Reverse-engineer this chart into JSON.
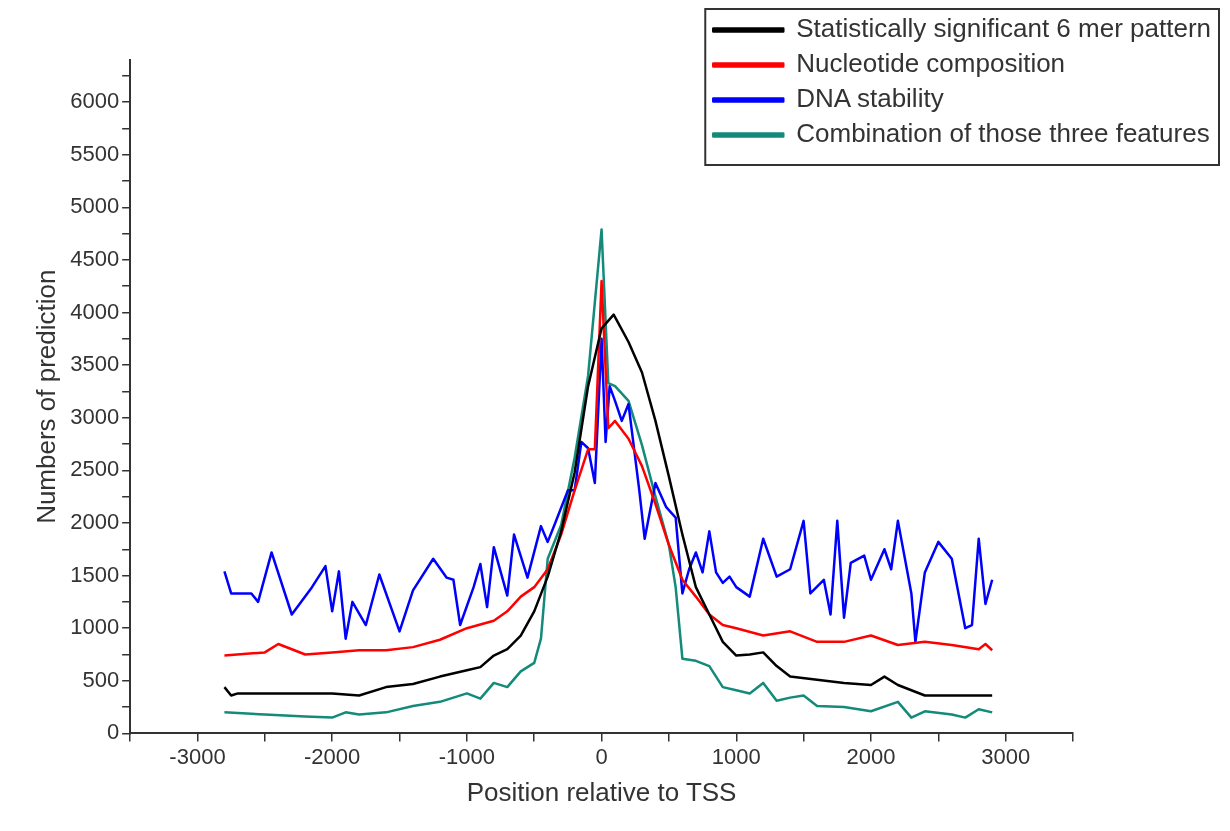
{
  "chart_data": {
    "type": "line",
    "xlabel": "Position relative to TSS",
    "ylabel": "Numbers of prediction",
    "xlim": [
      -3500,
      3500
    ],
    "xticks": [
      {
        "value": -3500,
        "label": null
      },
      -3000,
      {
        "value": -2500,
        "label": null
      },
      -2000,
      {
        "value": -1500,
        "label": null
      },
      -1000,
      {
        "value": -500,
        "label": null
      },
      0,
      {
        "value": 500,
        "label": null
      },
      1000,
      {
        "value": 1500,
        "label": null
      },
      2000,
      {
        "value": 2500,
        "label": null
      },
      3000,
      {
        "value": 3500,
        "label": null
      }
    ],
    "ylim": [
      0,
      6400
    ],
    "yticks": [
      0,
      {
        "value": 250,
        "label": null
      },
      500,
      {
        "value": 750,
        "label": null
      },
      1000,
      {
        "value": 1250,
        "label": null
      },
      1500,
      {
        "value": 1750,
        "label": null
      },
      2000,
      {
        "value": 2250,
        "label": null
      },
      2500,
      {
        "value": 2750,
        "label": null
      },
      3000,
      {
        "value": 3250,
        "label": null
      },
      3500,
      {
        "value": 3750,
        "label": null
      },
      4000,
      {
        "value": 4250,
        "label": null
      },
      4500,
      {
        "value": 4750,
        "label": null
      },
      5000,
      {
        "value": 5250,
        "label": null
      },
      5500,
      {
        "value": 5750,
        "label": null
      },
      6000,
      {
        "value": 6250,
        "label": null
      }
    ],
    "grid": false,
    "legend": "top right",
    "marker": "none",
    "line_style": "solid",
    "series": [
      {
        "name": "Statistically significant 6 mer pattern",
        "color": "#000000",
        "x": [
          -2800,
          -2750,
          -2700,
          -2500,
          -2000,
          -1800,
          -1600,
          -1400,
          -1200,
          -1000,
          -900,
          -800,
          -700,
          -600,
          -500,
          -400,
          -300,
          -200,
          -100,
          0,
          90,
          200,
          300,
          400,
          500,
          600,
          700,
          800,
          900,
          1000,
          1100,
          1200,
          1300,
          1400,
          1600,
          1800,
          2000,
          2100,
          2200,
          2400,
          2600,
          2800,
          2900
        ],
        "values": [
          440,
          360,
          380,
          380,
          380,
          360,
          440,
          470,
          540,
          600,
          630,
          740,
          800,
          930,
          1160,
          1490,
          1920,
          2480,
          3300,
          3850,
          3980,
          3720,
          3430,
          2970,
          2440,
          1890,
          1390,
          1130,
          870,
          740,
          750,
          770,
          640,
          540,
          510,
          480,
          460,
          540,
          460,
          360,
          360,
          360,
          360
        ]
      },
      {
        "name": "Nucleotide composition",
        "color": "#ff0000",
        "x": [
          -2800,
          -2500,
          -2400,
          -2200,
          -2000,
          -1800,
          -1600,
          -1400,
          -1200,
          -1000,
          -800,
          -700,
          -600,
          -500,
          -400,
          -300,
          -200,
          -100,
          -50,
          0,
          50,
          100,
          200,
          300,
          400,
          500,
          600,
          700,
          800,
          900,
          1000,
          1200,
          1400,
          1600,
          1800,
          2000,
          2200,
          2400,
          2600,
          2800,
          2850,
          2900
        ],
        "values": [
          740,
          770,
          850,
          750,
          770,
          790,
          790,
          820,
          890,
          1000,
          1070,
          1160,
          1300,
          1390,
          1560,
          1890,
          2310,
          2700,
          2700,
          4300,
          2900,
          2970,
          2800,
          2540,
          2180,
          1790,
          1460,
          1300,
          1130,
          1030,
          1000,
          930,
          970,
          870,
          870,
          930,
          840,
          870,
          840,
          800,
          850,
          790
        ]
      },
      {
        "name": "DNA stability",
        "color": "#0000ff",
        "x": [
          -2800,
          -2750,
          -2600,
          -2550,
          -2450,
          -2300,
          -2150,
          -2050,
          -2000,
          -1950,
          -1900,
          -1850,
          -1750,
          -1650,
          -1500,
          -1400,
          -1250,
          -1150,
          -1100,
          -1050,
          -950,
          -900,
          -850,
          -800,
          -700,
          -650,
          -550,
          -450,
          -400,
          -350,
          -250,
          -200,
          -150,
          -100,
          -50,
          0,
          30,
          60,
          100,
          150,
          200,
          280,
          320,
          400,
          480,
          550,
          600,
          650,
          700,
          750,
          800,
          850,
          900,
          950,
          1000,
          1100,
          1200,
          1300,
          1400,
          1500,
          1550,
          1650,
          1700,
          1750,
          1800,
          1850,
          1950,
          2000,
          2100,
          2150,
          2200,
          2300,
          2330,
          2400,
          2500,
          2600,
          2650,
          2700,
          2750,
          2800,
          2850,
          2900
        ],
        "values": [
          1540,
          1330,
          1330,
          1250,
          1720,
          1130,
          1390,
          1590,
          1160,
          1540,
          900,
          1250,
          1030,
          1510,
          970,
          1360,
          1660,
          1480,
          1460,
          1030,
          1390,
          1610,
          1200,
          1770,
          1310,
          1890,
          1480,
          1970,
          1820,
          1980,
          2310,
          2310,
          2770,
          2710,
          2380,
          3750,
          2770,
          3300,
          3160,
          2970,
          3130,
          2310,
          1850,
          2380,
          2150,
          2050,
          1330,
          1560,
          1720,
          1530,
          1920,
          1530,
          1430,
          1490,
          1390,
          1300,
          1850,
          1490,
          1560,
          2020,
          1330,
          1460,
          1130,
          2020,
          1100,
          1620,
          1690,
          1460,
          1750,
          1560,
          2020,
          1330,
          870,
          1530,
          1820,
          1660,
          1330,
          1000,
          1030,
          1850,
          1230,
          1460
        ]
      },
      {
        "name": "Combination of those three features",
        "color": "#138a7a",
        "x": [
          -2800,
          -2500,
          -2200,
          -2000,
          -1900,
          -1800,
          -1600,
          -1400,
          -1200,
          -1000,
          -900,
          -800,
          -700,
          -600,
          -500,
          -450,
          -400,
          -300,
          -200,
          -100,
          0,
          50,
          100,
          200,
          300,
          400,
          500,
          550,
          600,
          700,
          800,
          900,
          1000,
          1100,
          1200,
          1300,
          1400,
          1500,
          1600,
          1800,
          2000,
          2200,
          2300,
          2400,
          2600,
          2700,
          2800,
          2900
        ],
        "values": [
          200,
          180,
          160,
          150,
          200,
          180,
          200,
          260,
          300,
          380,
          330,
          480,
          440,
          590,
          670,
          900,
          1660,
          1980,
          2620,
          3400,
          4790,
          3330,
          3300,
          3160,
          2740,
          2250,
          1790,
          1390,
          710,
          690,
          640,
          440,
          410,
          380,
          480,
          310,
          340,
          360,
          260,
          250,
          210,
          300,
          150,
          210,
          180,
          150,
          230,
          200
        ]
      }
    ]
  }
}
